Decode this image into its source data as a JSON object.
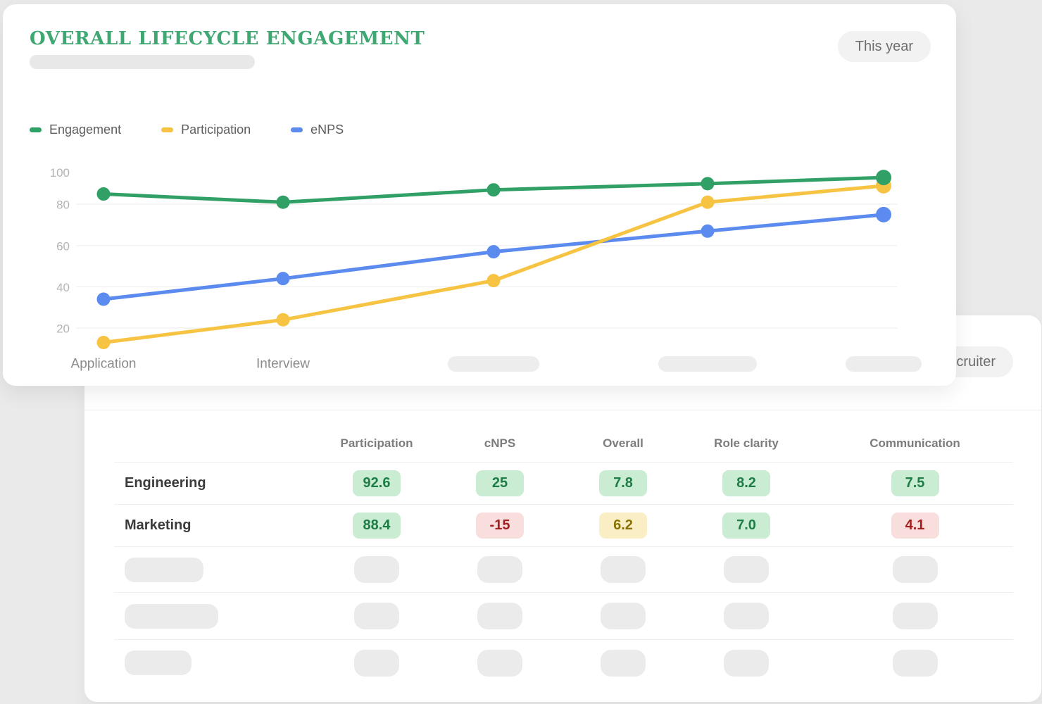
{
  "chart_card": {
    "title": "OVERALL LIFECYCLE ENGAGEMENT",
    "period_button": "This year",
    "legend": [
      {
        "label": "Engagement",
        "color": "#31a066"
      },
      {
        "label": "Participation",
        "color": "#f6c343"
      },
      {
        "label": "eNPS",
        "color": "#5b8bee"
      }
    ]
  },
  "chart_data": {
    "type": "line",
    "categories": [
      "Application",
      "Interview",
      "",
      "",
      ""
    ],
    "series": [
      {
        "name": "Engagement",
        "color": "#31a066",
        "values": [
          85,
          81,
          87,
          90,
          93
        ]
      },
      {
        "name": "Participation",
        "color": "#f6c343",
        "values": [
          13,
          24,
          43,
          81,
          89
        ]
      },
      {
        "name": "eNPS",
        "color": "#5b8bee",
        "values": [
          34,
          44,
          57,
          67,
          75
        ]
      }
    ],
    "y_ticks": [
      100,
      80,
      60,
      40,
      20
    ],
    "ylim": [
      0,
      100
    ],
    "grid": "horizontal",
    "legend_position": "top-left"
  },
  "table_card": {
    "filter_button": "Recruiter",
    "columns": [
      "Participation",
      "cNPS",
      "Overall",
      "Role clarity",
      "Communication"
    ],
    "rows": [
      {
        "label": "Engineering",
        "cells": [
          {
            "value": "92.6",
            "status": "good"
          },
          {
            "value": "25",
            "status": "good"
          },
          {
            "value": "7.8",
            "status": "good"
          },
          {
            "value": "8.2",
            "status": "good"
          },
          {
            "value": "7.5",
            "status": "good"
          }
        ]
      },
      {
        "label": "Marketing",
        "cells": [
          {
            "value": "88.4",
            "status": "good"
          },
          {
            "value": "-15",
            "status": "bad"
          },
          {
            "value": "6.2",
            "status": "warn"
          },
          {
            "value": "7.0",
            "status": "good"
          },
          {
            "value": "4.1",
            "status": "bad"
          }
        ]
      }
    ],
    "placeholder_row_count": 3,
    "status_colors": {
      "good": {
        "bg": "#c9ecd2",
        "text": "#1e7d46"
      },
      "warn": {
        "bg": "#faeec5",
        "text": "#8a7000"
      },
      "bad": {
        "bg": "#f9dede",
        "text": "#a42020"
      }
    }
  }
}
